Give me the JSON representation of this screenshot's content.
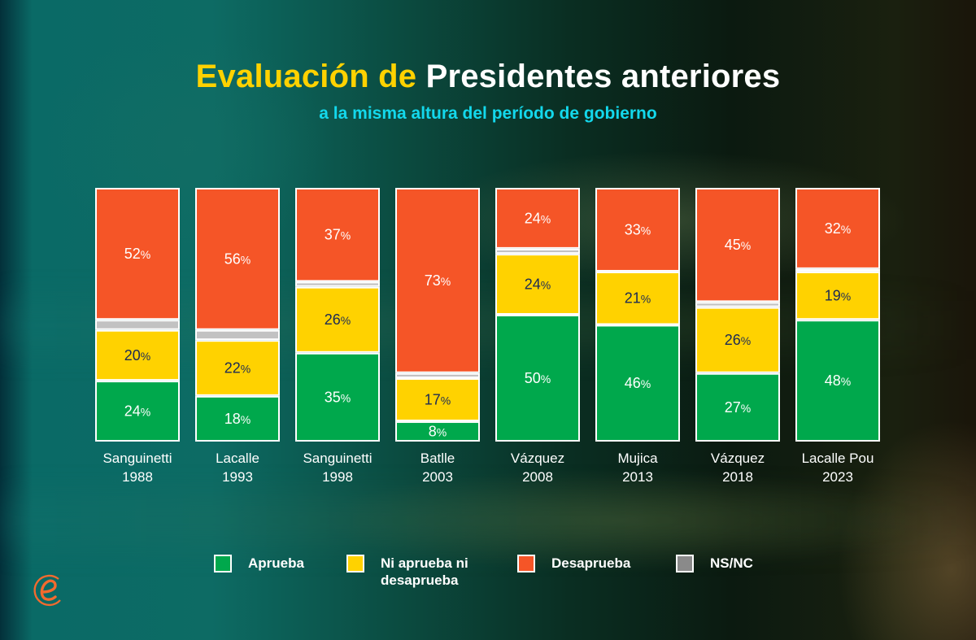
{
  "header": {
    "title_part1": "Evaluación de",
    "title_part2": "Presidentes anteriores",
    "subtitle": "a la misma altura del período de gobierno"
  },
  "logo": {
    "icon": "e-logo-icon",
    "color": "#f26a2e"
  },
  "colors": {
    "aprueba": "#00a84c",
    "ni": "#ffd200",
    "desaprueba": "#f55527",
    "nsnc": "#c2c2c2",
    "label_dark": "#1b2a55",
    "label_light": "#ffffff"
  },
  "legend": [
    {
      "key": "aprueba",
      "label": "Aprueba",
      "color": "#00a84c"
    },
    {
      "key": "ni",
      "label": "Ni aprueba ni desaprueba",
      "label_lines": [
        "Ni aprueba ni",
        "desaprueba"
      ],
      "color": "#ffd200"
    },
    {
      "key": "desaprueba",
      "label": "Desaprueba",
      "color": "#f55527"
    },
    {
      "key": "nsnc",
      "label": "NS/NC",
      "color": "#8a8a8a"
    }
  ],
  "chart_data": {
    "type": "bar",
    "stacked": true,
    "orientation": "vertical",
    "title": "Evaluación de Presidentes anteriores",
    "subtitle": "a la misma altura del período de gobierno",
    "xlabel": "",
    "ylabel": "",
    "ylim": [
      0,
      100
    ],
    "grid": false,
    "legend_position": "bottom",
    "categories": [
      [
        "Sanguinetti",
        "1988"
      ],
      [
        "Lacalle",
        "1993"
      ],
      [
        "Sanguinetti",
        "1998"
      ],
      [
        "Batlle",
        "2003"
      ],
      [
        "Vázquez",
        "2008"
      ],
      [
        "Mujica",
        "2013"
      ],
      [
        "Vázquez",
        "2018"
      ],
      [
        "Lacalle Pou",
        "2023"
      ]
    ],
    "series": [
      {
        "name": "Aprueba",
        "key": "aprueba",
        "values": [
          24,
          18,
          35,
          8,
          50,
          46,
          27,
          48
        ],
        "show_labels": true
      },
      {
        "name": "Ni aprueba ni desaprueba",
        "key": "ni",
        "values": [
          20,
          22,
          26,
          17,
          24,
          21,
          26,
          19
        ],
        "show_labels": true
      },
      {
        "name": "NS/NC",
        "key": "nsnc",
        "values": [
          4,
          4,
          2,
          2,
          2,
          0,
          2,
          1
        ],
        "show_labels": false
      },
      {
        "name": "Desaprueba",
        "key": "desaprueba",
        "values": [
          52,
          56,
          37,
          73,
          24,
          33,
          45,
          32
        ],
        "show_labels": true
      }
    ],
    "value_suffix": "%"
  }
}
